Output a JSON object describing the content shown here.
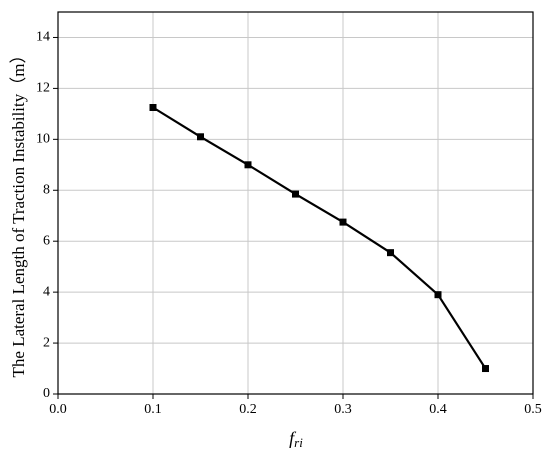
{
  "chart_data": {
    "type": "line",
    "ylabel": "The Lateral Length of Traction Instability（m）",
    "xlabel": "f",
    "xlabel_subscript": "ri",
    "x": [
      0.1,
      0.15,
      0.2,
      0.25,
      0.3,
      0.35,
      0.4,
      0.45
    ],
    "series": [
      {
        "color": "#000000",
        "values": [
          11.25,
          10.1,
          9.0,
          7.85,
          6.75,
          5.55,
          3.9,
          1.0
        ]
      }
    ],
    "xlim": [
      0,
      0.5
    ],
    "ylim": [
      0,
      15
    ],
    "xticks": [
      {
        "value": 0,
        "label": "0.0"
      },
      0.1,
      0.2,
      0.3,
      0.4,
      0.5
    ],
    "yticks": [
      0,
      2,
      4,
      6,
      8,
      10,
      12,
      14
    ],
    "grid": true,
    "marker": "square"
  }
}
